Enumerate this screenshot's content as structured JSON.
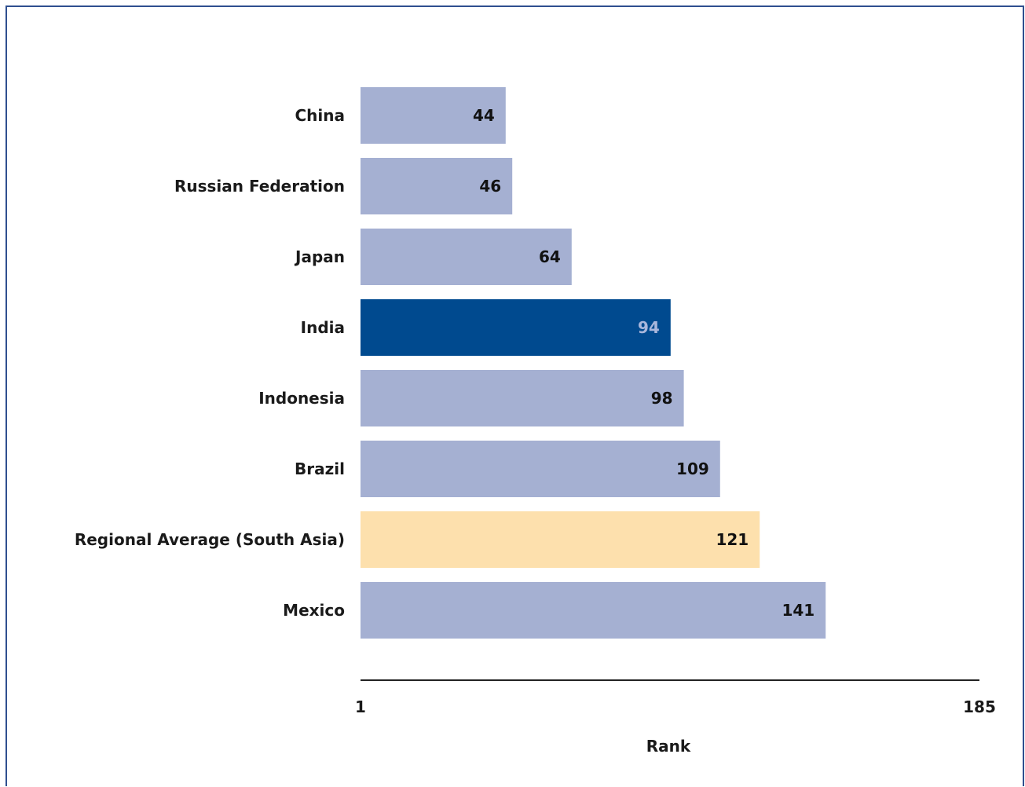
{
  "chart_data": {
    "type": "bar",
    "orientation": "horizontal",
    "categories": [
      "China",
      "Russian Federation",
      "Japan",
      "India",
      "Indonesia",
      "Brazil",
      "Regional Average (South Asia)",
      "Mexico"
    ],
    "values": [
      44,
      46,
      64,
      94,
      98,
      109,
      121,
      141
    ],
    "xlabel": "Rank",
    "xlim": [
      1,
      185
    ],
    "x_ticks": [
      "1",
      "185"
    ],
    "colors": {
      "default": "#a5b0d2",
      "highlight": "#004a8f",
      "regional": "#fde0ad",
      "value_text_default": "#111111",
      "value_text_highlight": "#a9b7dc"
    },
    "highlight_category": "India",
    "regional_category": "Regional Average (South Asia)"
  }
}
